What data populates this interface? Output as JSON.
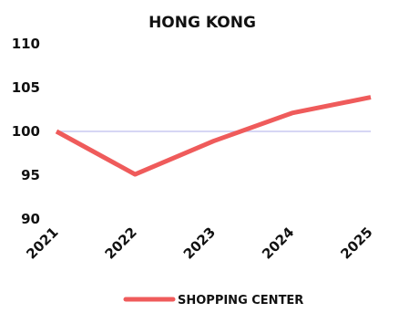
{
  "chart_data": {
    "type": "line",
    "title": "HONG KONG",
    "xlabel": "",
    "ylabel": "",
    "categories": [
      "2021",
      "2022",
      "2023",
      "2024",
      "2025"
    ],
    "series": [
      {
        "name": "SHOPPING CENTER",
        "values": [
          100,
          95.1,
          98.9,
          102.1,
          103.9
        ],
        "color": "#ef5b5b"
      }
    ],
    "ylim": [
      90,
      110
    ],
    "yticks": [
      "90",
      "95",
      "100",
      "105",
      "110"
    ],
    "reference_line": {
      "value": 100,
      "color": "#c9c8f0"
    },
    "legend_position": "bottom",
    "grid": false
  }
}
